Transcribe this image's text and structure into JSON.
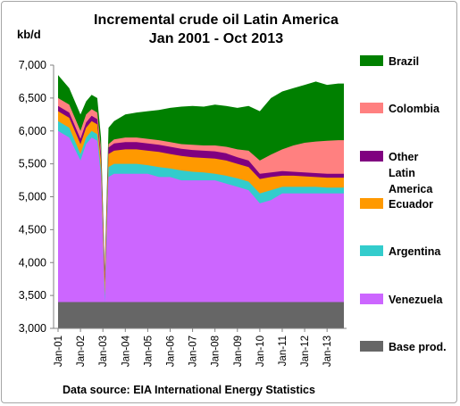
{
  "chart_data": {
    "type": "area",
    "title": "Incremental crude oil Latin America",
    "subtitle": "Jan 2001 - Oct 2013",
    "ylabel": "kb/d",
    "xlabel": "",
    "ylim": [
      3000,
      7000
    ],
    "yticks": [
      "3,000",
      "3,500",
      "4,000",
      "4,500",
      "5,000",
      "5,500",
      "6,000",
      "6,500",
      "7,000"
    ],
    "xticks": [
      "Jan-01",
      "Jan-02",
      "Jan-03",
      "Jan-04",
      "Jan-05",
      "Jan-06",
      "Jan-07",
      "Jan-08",
      "Jan-09",
      "Jan-10",
      "Jan-11",
      "Jan-12",
      "Jan-13"
    ],
    "stacking": "cumulative",
    "x": [
      "2001-01",
      "2001-07",
      "2002-01",
      "2002-04",
      "2002-07",
      "2002-10",
      "2002-12",
      "2003-02",
      "2003-04",
      "2003-07",
      "2004-01",
      "2004-07",
      "2005-01",
      "2005-07",
      "2006-01",
      "2006-07",
      "2007-01",
      "2007-07",
      "2008-01",
      "2008-07",
      "2009-01",
      "2009-07",
      "2010-01",
      "2010-07",
      "2011-01",
      "2011-07",
      "2012-01",
      "2012-07",
      "2013-01",
      "2013-07",
      "2013-10"
    ],
    "series": [
      {
        "name": "Base prod.",
        "color": "#666666",
        "values": [
          3400,
          3400,
          3400,
          3400,
          3400,
          3400,
          3400,
          3400,
          3400,
          3400,
          3400,
          3400,
          3400,
          3400,
          3400,
          3400,
          3400,
          3400,
          3400,
          3400,
          3400,
          3400,
          3400,
          3400,
          3400,
          3400,
          3400,
          3400,
          3400,
          3400,
          3400
        ]
      },
      {
        "name": "Venezuela",
        "color": "#cc66ff",
        "values": [
          6000,
          5900,
          5550,
          5800,
          5900,
          5850,
          5300,
          3400,
          5300,
          5350,
          5350,
          5350,
          5350,
          5300,
          5300,
          5250,
          5250,
          5250,
          5250,
          5200,
          5150,
          5100,
          4900,
          4950,
          5050,
          5050,
          5050,
          5050,
          5050,
          5050,
          5050
        ]
      },
      {
        "name": "Argentina",
        "color": "#33cccc",
        "values": [
          6150,
          6050,
          5650,
          5900,
          6000,
          5950,
          5400,
          3500,
          5450,
          5500,
          5500,
          5500,
          5480,
          5450,
          5430,
          5400,
          5380,
          5370,
          5350,
          5320,
          5280,
          5230,
          5050,
          5100,
          5150,
          5150,
          5150,
          5150,
          5140,
          5140,
          5140
        ]
      },
      {
        "name": "Ecuador",
        "color": "#ff9900",
        "values": [
          6300,
          6200,
          5800,
          6050,
          6150,
          6100,
          5550,
          3700,
          5650,
          5700,
          5720,
          5720,
          5700,
          5680,
          5650,
          5620,
          5600,
          5590,
          5580,
          5550,
          5500,
          5450,
          5270,
          5300,
          5320,
          5320,
          5310,
          5300,
          5290,
          5290,
          5290
        ]
      },
      {
        "name": "Other Latin America",
        "color": "#800080",
        "values": [
          6380,
          6280,
          5880,
          6130,
          6230,
          6180,
          5650,
          3800,
          5750,
          5810,
          5830,
          5830,
          5810,
          5790,
          5760,
          5730,
          5710,
          5700,
          5690,
          5660,
          5600,
          5550,
          5350,
          5370,
          5390,
          5380,
          5370,
          5360,
          5350,
          5350,
          5350
        ]
      },
      {
        "name": "Colombia",
        "color": "#ff8080",
        "values": [
          6500,
          6400,
          6000,
          6250,
          6330,
          6280,
          5720,
          3850,
          5800,
          5870,
          5900,
          5900,
          5880,
          5860,
          5830,
          5800,
          5790,
          5780,
          5780,
          5760,
          5720,
          5700,
          5550,
          5640,
          5720,
          5780,
          5820,
          5840,
          5850,
          5860,
          5860
        ]
      },
      {
        "name": "Brazil",
        "color": "#008000",
        "values": [
          6850,
          6650,
          6250,
          6450,
          6550,
          6500,
          5900,
          3900,
          6050,
          6150,
          6250,
          6280,
          6300,
          6320,
          6350,
          6370,
          6380,
          6370,
          6400,
          6380,
          6350,
          6380,
          6300,
          6500,
          6600,
          6650,
          6700,
          6750,
          6700,
          6720,
          6720
        ]
      }
    ],
    "legend": [
      "Brazil",
      "Colombia",
      "Other Latin America",
      "Ecuador",
      "Argentina",
      "Venezuela",
      "Base prod."
    ],
    "legend_position": "right",
    "grid": false
  },
  "source_text": "Data source: EIA International Energy Statistics"
}
